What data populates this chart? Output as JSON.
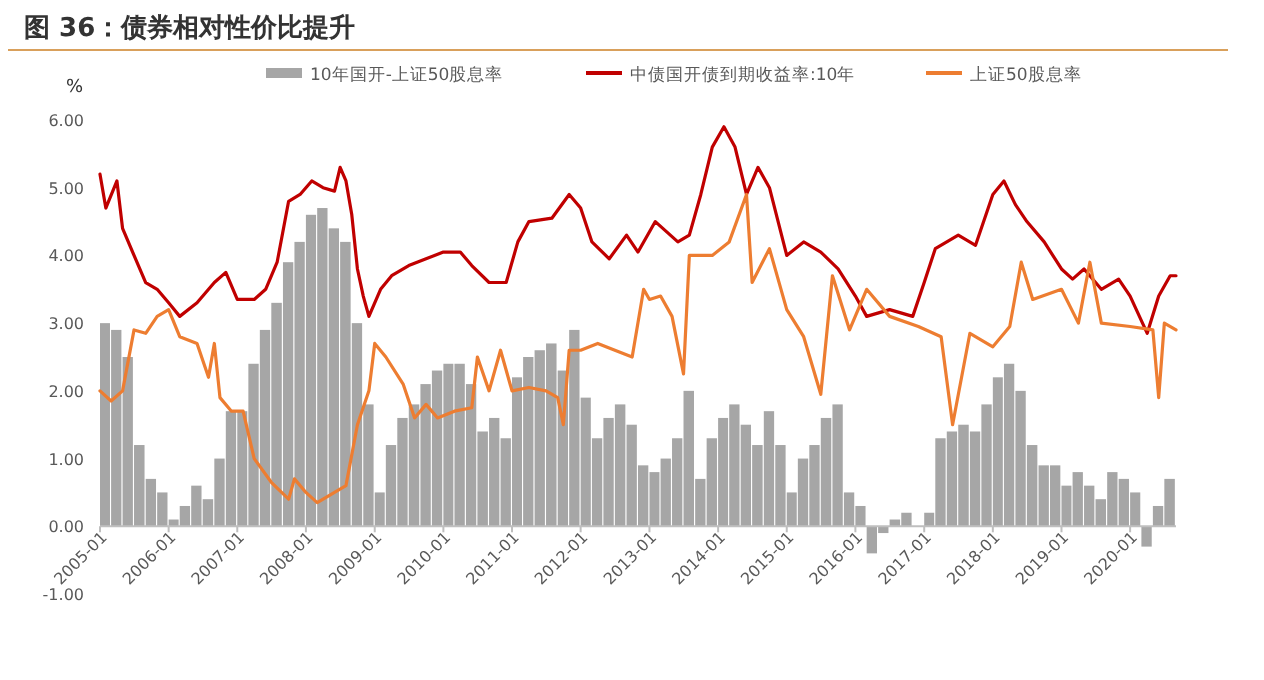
{
  "chart_data": {
    "type": "line",
    "title": "图 36：债券相对性价比提升",
    "ylabel": "%",
    "legend": "top",
    "xlim": [
      "2005-01",
      "2020-09"
    ],
    "xticks": [
      "2005-01",
      "2006-01",
      "2007-01",
      "2008-01",
      "2009-01",
      "2010-01",
      "2011-01",
      "2012-01",
      "2013-01",
      "2014-01",
      "2015-01",
      "2016-01",
      "2017-01",
      "2018-01",
      "2019-01",
      "2020-01"
    ],
    "ylim": [
      -1,
      6
    ],
    "yticks": [
      {
        "value": -1,
        "label": "-1.00"
      },
      {
        "value": 0,
        "label": "0.00"
      },
      {
        "value": 1,
        "label": "1.00"
      },
      {
        "value": 2,
        "label": "2.00"
      },
      {
        "value": 3,
        "label": "3.00"
      },
      {
        "value": 4,
        "label": "4.00"
      },
      {
        "value": 5,
        "label": "5.00"
      },
      {
        "value": 6,
        "label": "6.00"
      }
    ],
    "series": [
      {
        "name": "10年国开-上证50股息率",
        "type": "bar",
        "color": "#a6a6a6",
        "x": [
          "2005-01",
          "2005-03",
          "2005-05",
          "2005-07",
          "2005-09",
          "2005-11",
          "2006-01",
          "2006-03",
          "2006-05",
          "2006-07",
          "2006-09",
          "2006-11",
          "2007-01",
          "2007-03",
          "2007-05",
          "2007-07",
          "2007-09",
          "2007-11",
          "2008-01",
          "2008-03",
          "2008-05",
          "2008-07",
          "2008-09",
          "2008-11",
          "2009-01",
          "2009-03",
          "2009-05",
          "2009-07",
          "2009-09",
          "2009-11",
          "2010-01",
          "2010-03",
          "2010-05",
          "2010-07",
          "2010-09",
          "2010-11",
          "2011-01",
          "2011-03",
          "2011-05",
          "2011-07",
          "2011-09",
          "2011-11",
          "2012-01",
          "2012-03",
          "2012-05",
          "2012-07",
          "2012-09",
          "2012-11",
          "2013-01",
          "2013-03",
          "2013-05",
          "2013-07",
          "2013-09",
          "2013-11",
          "2014-01",
          "2014-03",
          "2014-05",
          "2014-07",
          "2014-09",
          "2014-11",
          "2015-01",
          "2015-03",
          "2015-05",
          "2015-07",
          "2015-09",
          "2015-11",
          "2016-01",
          "2016-03",
          "2016-05",
          "2016-07",
          "2016-09",
          "2016-11",
          "2017-01",
          "2017-03",
          "2017-05",
          "2017-07",
          "2017-09",
          "2017-11",
          "2018-01",
          "2018-03",
          "2018-05",
          "2018-07",
          "2018-09",
          "2018-11",
          "2019-01",
          "2019-03",
          "2019-05",
          "2019-07",
          "2019-09",
          "2019-11",
          "2020-01",
          "2020-03",
          "2020-05",
          "2020-07"
        ],
        "values": [
          3.0,
          2.9,
          2.5,
          1.2,
          0.7,
          0.5,
          0.1,
          0.3,
          0.6,
          0.4,
          1.0,
          1.7,
          1.7,
          2.4,
          2.9,
          3.3,
          3.9,
          4.2,
          4.6,
          4.7,
          4.4,
          4.2,
          3.0,
          1.8,
          0.5,
          1.2,
          1.6,
          1.8,
          2.1,
          2.3,
          2.4,
          2.4,
          2.1,
          1.4,
          1.6,
          1.3,
          2.2,
          2.5,
          2.6,
          2.7,
          2.3,
          2.9,
          1.9,
          1.3,
          1.6,
          1.8,
          1.5,
          0.9,
          0.8,
          1.0,
          1.3,
          2.0,
          0.7,
          1.3,
          1.6,
          1.8,
          1.5,
          1.2,
          1.7,
          1.2,
          0.5,
          1.0,
          1.2,
          1.6,
          1.8,
          0.5,
          0.3,
          -0.4,
          -0.1,
          0.1,
          0.2,
          0.0,
          0.2,
          1.3,
          1.4,
          1.5,
          1.4,
          1.8,
          2.2,
          2.4,
          2.0,
          1.2,
          0.9,
          0.9,
          0.6,
          0.8,
          0.6,
          0.4,
          0.8,
          0.7,
          0.5,
          -0.3,
          0.3,
          0.7
        ]
      },
      {
        "name": "中债国开债到期收益率:10年",
        "color": "#c00000",
        "x": [
          "2005-01",
          "2005-02",
          "2005-04",
          "2005-05",
          "2005-07",
          "2005-09",
          "2005-11",
          "2006-01",
          "2006-03",
          "2006-06",
          "2006-09",
          "2006-11",
          "2007-01",
          "2007-04",
          "2007-06",
          "2007-08",
          "2007-10",
          "2007-12",
          "2008-02",
          "2008-04",
          "2008-06",
          "2008-07",
          "2008-08",
          "2008-09",
          "2008-10",
          "2008-11",
          "2008-12",
          "2009-02",
          "2009-04",
          "2009-07",
          "2009-10",
          "2010-01",
          "2010-04",
          "2010-06",
          "2010-09",
          "2010-12",
          "2011-02",
          "2011-04",
          "2011-08",
          "2011-11",
          "2012-01",
          "2012-03",
          "2012-06",
          "2012-09",
          "2012-11",
          "2013-02",
          "2013-06",
          "2013-08",
          "2013-10",
          "2013-12",
          "2014-02",
          "2014-04",
          "2014-06",
          "2014-08",
          "2014-10",
          "2015-01",
          "2015-04",
          "2015-07",
          "2015-10",
          "2016-01",
          "2016-03",
          "2016-07",
          "2016-11",
          "2017-01",
          "2017-03",
          "2017-07",
          "2017-10",
          "2018-01",
          "2018-03",
          "2018-05",
          "2018-07",
          "2018-10",
          "2019-01",
          "2019-03",
          "2019-05",
          "2019-08",
          "2019-11",
          "2020-01",
          "2020-04",
          "2020-06",
          "2020-08",
          "2020-09"
        ],
        "values": [
          5.2,
          4.7,
          5.1,
          4.4,
          4.0,
          3.6,
          3.5,
          3.3,
          3.1,
          3.3,
          3.6,
          3.75,
          3.35,
          3.35,
          3.5,
          3.9,
          4.8,
          4.9,
          5.1,
          5.0,
          4.95,
          5.3,
          5.1,
          4.6,
          3.8,
          3.4,
          3.1,
          3.5,
          3.7,
          3.85,
          3.95,
          4.05,
          4.05,
          3.85,
          3.6,
          3.6,
          4.2,
          4.5,
          4.55,
          4.9,
          4.7,
          4.2,
          3.95,
          4.3,
          4.05,
          4.5,
          4.2,
          4.3,
          4.9,
          5.6,
          5.9,
          5.6,
          4.9,
          5.3,
          5.0,
          4.0,
          4.2,
          4.05,
          3.8,
          3.4,
          3.1,
          3.2,
          3.1,
          3.6,
          4.1,
          4.3,
          4.15,
          4.9,
          5.1,
          4.75,
          4.5,
          4.2,
          3.8,
          3.65,
          3.8,
          3.5,
          3.65,
          3.4,
          2.85,
          3.4,
          3.7,
          3.7
        ]
      },
      {
        "name": "上证50股息率",
        "color": "#ed7d31",
        "x": [
          "2005-01",
          "2005-03",
          "2005-05",
          "2005-07",
          "2005-09",
          "2005-11",
          "2006-01",
          "2006-03",
          "2006-06",
          "2006-08",
          "2006-09",
          "2006-10",
          "2006-12",
          "2007-02",
          "2007-04",
          "2007-07",
          "2007-10",
          "2007-11",
          "2008-01",
          "2008-03",
          "2008-06",
          "2008-08",
          "2008-10",
          "2008-12",
          "2009-01",
          "2009-03",
          "2009-06",
          "2009-08",
          "2009-10",
          "2009-12",
          "2010-03",
          "2010-06",
          "2010-07",
          "2010-09",
          "2010-11",
          "2011-01",
          "2011-04",
          "2011-07",
          "2011-09",
          "2011-10",
          "2011-11",
          "2012-01",
          "2012-04",
          "2012-07",
          "2012-10",
          "2012-12",
          "2013-01",
          "2013-03",
          "2013-05",
          "2013-07",
          "2013-08",
          "2013-12",
          "2014-03",
          "2014-06",
          "2014-07",
          "2014-10",
          "2015-01",
          "2015-04",
          "2015-07",
          "2015-09",
          "2015-12",
          "2016-03",
          "2016-07",
          "2016-12",
          "2017-04",
          "2017-06",
          "2017-09",
          "2018-01",
          "2018-04",
          "2018-06",
          "2018-08",
          "2019-01",
          "2019-04",
          "2019-06",
          "2019-08",
          "2020-01",
          "2020-05",
          "2020-06",
          "2020-07",
          "2020-09"
        ],
        "values": [
          2.0,
          1.85,
          2.0,
          2.9,
          2.85,
          3.1,
          3.2,
          2.8,
          2.7,
          2.2,
          2.7,
          1.9,
          1.7,
          1.7,
          1.0,
          0.65,
          0.4,
          0.7,
          0.5,
          0.35,
          0.5,
          0.6,
          1.5,
          2.0,
          2.7,
          2.5,
          2.1,
          1.6,
          1.8,
          1.6,
          1.7,
          1.75,
          2.5,
          2.0,
          2.6,
          2.0,
          2.05,
          2.0,
          1.9,
          1.5,
          2.6,
          2.6,
          2.7,
          2.6,
          2.5,
          3.5,
          3.35,
          3.4,
          3.1,
          2.25,
          4.0,
          4.0,
          4.2,
          4.9,
          3.6,
          4.1,
          3.2,
          2.8,
          1.95,
          3.7,
          2.9,
          3.5,
          3.1,
          2.95,
          2.8,
          1.5,
          2.85,
          2.65,
          2.95,
          3.9,
          3.35,
          3.5,
          3.0,
          3.9,
          3.0,
          2.95,
          2.9,
          1.9,
          3.0,
          2.9
        ]
      }
    ]
  }
}
